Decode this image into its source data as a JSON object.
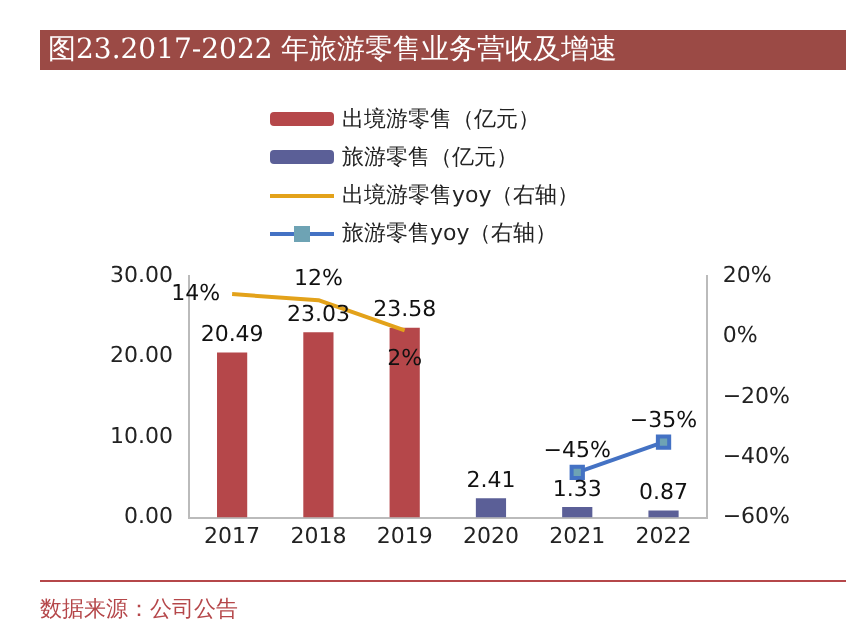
{
  "chart_data": {
    "type": "bar",
    "title": "图23.2017-2022 年旅游零售业务营收及增速",
    "categories": [
      "2017",
      "2018",
      "2019",
      "2020",
      "2021",
      "2022"
    ],
    "series": [
      {
        "name": "出境游零售（亿元）",
        "color": "#b5474a",
        "values": [
          20.49,
          23.03,
          23.58,
          null,
          null,
          null
        ],
        "value_labels": [
          "20.49",
          "23.03",
          "23.58",
          null,
          null,
          null
        ]
      },
      {
        "name": "旅游零售（亿元）",
        "color": "#5b5f97",
        "values": [
          null,
          null,
          null,
          2.41,
          1.33,
          0.87
        ],
        "value_labels": [
          null,
          null,
          null,
          "2.41",
          "1.33",
          "0.87"
        ]
      },
      {
        "name": "出境游零售yoy（右轴）",
        "type": "line",
        "axis": "y2",
        "marker": "none",
        "color": "#e3a21a",
        "values": [
          14,
          12,
          2,
          null,
          null,
          null
        ],
        "value_labels": [
          "14%",
          "12%",
          "2%",
          null,
          null,
          null
        ]
      },
      {
        "name": "旅游零售yoy（右轴）",
        "type": "line",
        "axis": "y2",
        "marker": "square",
        "color": "#4472c4",
        "values": [
          null,
          null,
          null,
          null,
          -45,
          -35
        ],
        "value_labels": [
          null,
          null,
          null,
          null,
          "−45%",
          "−35%"
        ]
      }
    ],
    "ylim": [
      0,
      30
    ],
    "yticks": [
      {
        "value": 0,
        "label": "0.00"
      },
      {
        "value": 10,
        "label": "10.00"
      },
      {
        "value": 20,
        "label": "20.00"
      },
      {
        "value": 30,
        "label": "30.00"
      }
    ],
    "y2lim": [
      -60,
      20
    ],
    "y2ticks": [
      {
        "value": -60,
        "label": "−60%"
      },
      {
        "value": -40,
        "label": "−40%"
      },
      {
        "value": -20,
        "label": "−20%"
      },
      {
        "value": 0,
        "label": "0%"
      },
      {
        "value": 20,
        "label": "20%"
      }
    ],
    "grid": false,
    "legend": "top",
    "annotations": [
      "数据来源：公司公告"
    ]
  }
}
